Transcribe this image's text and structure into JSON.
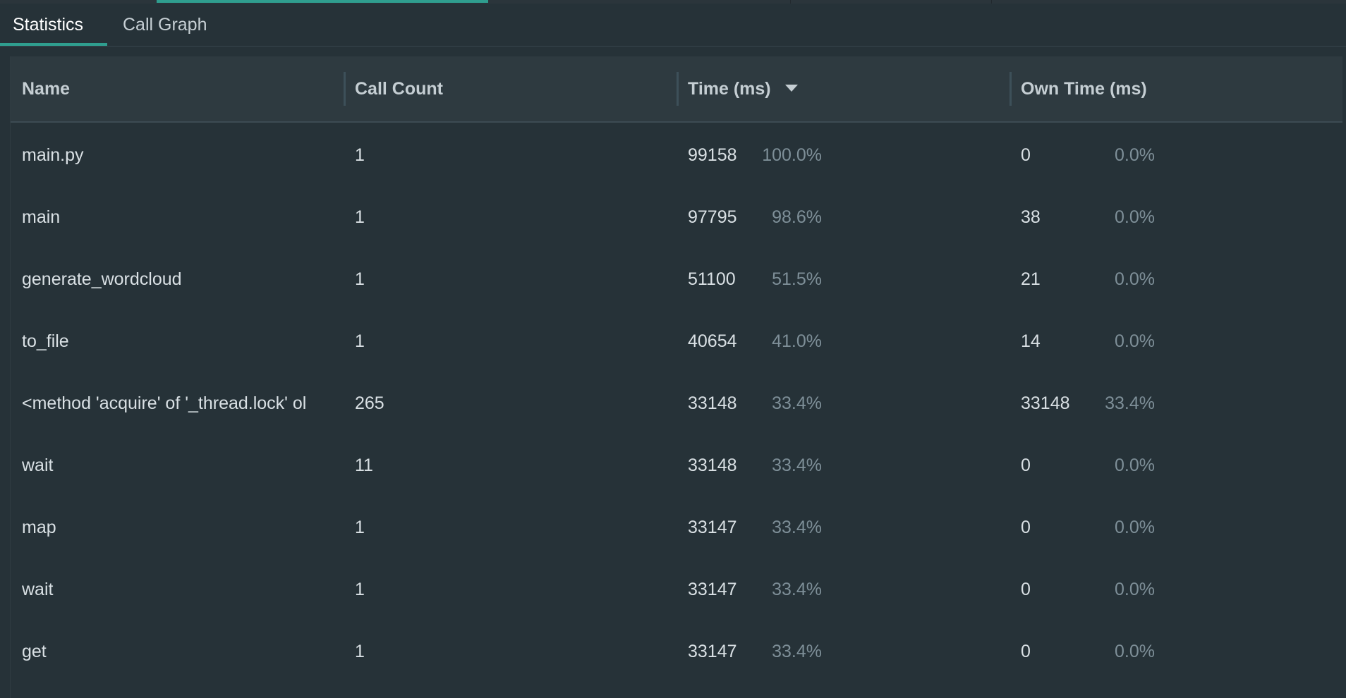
{
  "tabs": [
    {
      "label": "Statistics",
      "active": true
    },
    {
      "label": "Call Graph",
      "active": false
    }
  ],
  "table": {
    "columns": {
      "name": "Name",
      "call_count": "Call Count",
      "time": "Time (ms)",
      "own_time": "Own Time (ms)"
    },
    "sort_column": "Time (ms)",
    "sort_direction": "descending",
    "rows": [
      {
        "name": "main.py",
        "call_count": "1",
        "time": "99158",
        "time_pct": "100.0%",
        "own_time": "0",
        "own_pct": "0.0%"
      },
      {
        "name": "main",
        "call_count": "1",
        "time": "97795",
        "time_pct": "98.6%",
        "own_time": "38",
        "own_pct": "0.0%"
      },
      {
        "name": "generate_wordcloud",
        "call_count": "1",
        "time": "51100",
        "time_pct": "51.5%",
        "own_time": "21",
        "own_pct": "0.0%"
      },
      {
        "name": "to_file",
        "call_count": "1",
        "time": "40654",
        "time_pct": "41.0%",
        "own_time": "14",
        "own_pct": "0.0%"
      },
      {
        "name": "<method 'acquire' of '_thread.lock' ol",
        "call_count": "265",
        "time": "33148",
        "time_pct": "33.4%",
        "own_time": "33148",
        "own_pct": "33.4%"
      },
      {
        "name": "wait",
        "call_count": "11",
        "time": "33148",
        "time_pct": "33.4%",
        "own_time": "0",
        "own_pct": "0.0%"
      },
      {
        "name": "map",
        "call_count": "1",
        "time": "33147",
        "time_pct": "33.4%",
        "own_time": "0",
        "own_pct": "0.0%"
      },
      {
        "name": "wait",
        "call_count": "1",
        "time": "33147",
        "time_pct": "33.4%",
        "own_time": "0",
        "own_pct": "0.0%"
      },
      {
        "name": "get",
        "call_count": "1",
        "time": "33147",
        "time_pct": "33.4%",
        "own_time": "0",
        "own_pct": "0.0%"
      }
    ]
  },
  "colors": {
    "background": "#263238",
    "header_background": "#2e3a40",
    "accent": "#2f9e8f",
    "text": "#d9e0e4",
    "muted_text": "#7e8f98"
  }
}
